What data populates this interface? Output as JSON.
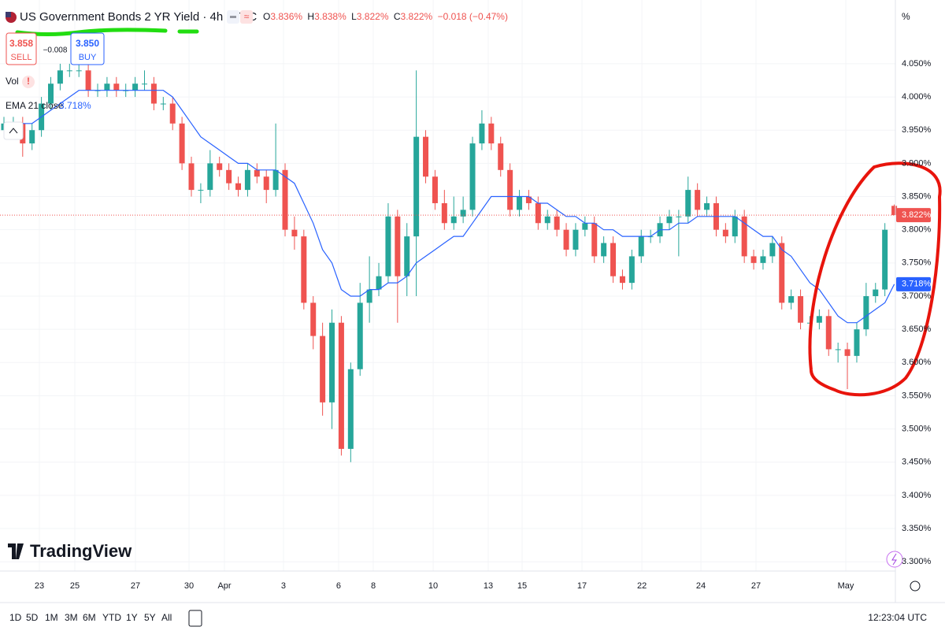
{
  "header": {
    "title": "US Government Bonds 2 YR Yield · 4h · TVC",
    "ohlc": [
      {
        "key": "O",
        "value": "3.836%"
      },
      {
        "key": "H",
        "value": "3.838%"
      },
      {
        "key": "L",
        "value": "3.822%"
      },
      {
        "key": "C",
        "value": "3.822%"
      }
    ],
    "change": "−0.018 (−0.47%)",
    "sell": {
      "price": "3.858",
      "label": "SELL"
    },
    "spread": "−0.008",
    "buy": {
      "price": "3.850",
      "label": "BUY"
    },
    "vol": "Vol",
    "unit": "%"
  },
  "logo": "TradingView",
  "toolbar": {
    "ranges": [
      "1D",
      "5D",
      "1M",
      "3M",
      "6M",
      "YTD",
      "1Y",
      "5Y",
      "All"
    ],
    "time": "12:23:04 UTC"
  },
  "chart_data": {
    "type": "candlestick",
    "x": [
      0,
      1,
      2,
      3,
      4,
      5,
      6,
      7,
      8,
      9,
      10,
      11,
      12,
      13,
      14,
      15,
      16,
      17,
      18,
      19,
      20,
      21,
      22,
      23,
      24,
      25,
      26,
      27,
      28,
      29,
      30,
      31,
      32,
      33,
      34,
      35,
      36,
      37,
      38,
      39,
      40,
      41,
      42,
      43,
      44,
      45,
      46,
      47,
      48,
      49,
      50,
      51,
      52,
      53,
      54,
      55,
      56,
      57,
      58,
      59,
      60,
      61,
      62,
      63,
      64,
      65,
      66,
      67,
      68,
      69,
      70,
      71,
      72,
      73,
      74,
      75,
      76,
      77,
      78,
      79,
      80,
      81,
      82,
      83,
      84,
      85,
      86,
      87,
      88,
      89,
      90,
      91,
      92,
      93,
      94,
      95
    ],
    "open": [
      3.95,
      3.96,
      3.96,
      3.93,
      3.95,
      3.99,
      4.02,
      4.04,
      4.04,
      4.04,
      4.01,
      4.01,
      4.02,
      4.01,
      4.01,
      4.02,
      4.02,
      3.99,
      3.99,
      3.96,
      3.9,
      3.86,
      3.86,
      3.9,
      3.89,
      3.87,
      3.86,
      3.89,
      3.88,
      3.86,
      3.89,
      3.8,
      3.79,
      3.69,
      3.64,
      3.54,
      3.66,
      3.47,
      3.59,
      3.69,
      3.71,
      3.73,
      3.82,
      3.73,
      3.79,
      3.94,
      3.88,
      3.84,
      3.81,
      3.82,
      3.83,
      3.93,
      3.96,
      3.93,
      3.89,
      3.83,
      3.85,
      3.84,
      3.81,
      3.82,
      3.8,
      3.77,
      3.8,
      3.81,
      3.76,
      3.78,
      3.73,
      3.72,
      3.76,
      3.79,
      3.79,
      3.81,
      3.82,
      3.82,
      3.86,
      3.83,
      3.84,
      3.8,
      3.79,
      3.82,
      3.76,
      3.75,
      3.76,
      3.78,
      3.69,
      3.7,
      3.66,
      3.66,
      3.67,
      3.62,
      3.62,
      3.61,
      3.65,
      3.7,
      3.71,
      3.836
    ],
    "high": [
      3.97,
      3.97,
      3.97,
      3.96,
      4.0,
      4.03,
      4.05,
      4.05,
      4.05,
      4.05,
      4.02,
      4.03,
      4.03,
      4.02,
      4.03,
      4.04,
      4.03,
      4.0,
      4.0,
      3.97,
      3.91,
      3.87,
      3.92,
      3.91,
      3.9,
      3.88,
      3.9,
      3.9,
      3.89,
      3.96,
      3.9,
      3.82,
      3.8,
      3.7,
      3.66,
      3.68,
      3.67,
      3.6,
      3.72,
      3.76,
      3.75,
      3.84,
      3.83,
      3.81,
      4.04,
      3.95,
      3.89,
      3.86,
      3.85,
      3.85,
      3.94,
      3.98,
      3.97,
      3.94,
      3.9,
      3.86,
      3.86,
      3.85,
      3.83,
      3.83,
      3.81,
      3.81,
      3.82,
      3.82,
      3.79,
      3.79,
      3.74,
      3.77,
      3.8,
      3.8,
      3.82,
      3.83,
      3.83,
      3.88,
      3.87,
      3.85,
      3.85,
      3.81,
      3.83,
      3.83,
      3.77,
      3.77,
      3.79,
      3.79,
      3.71,
      3.71,
      3.67,
      3.68,
      3.68,
      3.63,
      3.63,
      3.66,
      3.72,
      3.72,
      3.81,
      3.838
    ],
    "low": [
      3.94,
      3.95,
      3.91,
      3.92,
      3.94,
      3.98,
      4.01,
      4.03,
      4.03,
      4.0,
      4.0,
      4.0,
      4.0,
      4.0,
      4.0,
      4.01,
      3.98,
      3.98,
      3.95,
      3.89,
      3.85,
      3.84,
      3.85,
      3.88,
      3.86,
      3.85,
      3.85,
      3.87,
      3.84,
      3.85,
      3.79,
      3.77,
      3.68,
      3.62,
      3.52,
      3.5,
      3.46,
      3.45,
      3.58,
      3.66,
      3.7,
      3.72,
      3.66,
      3.7,
      3.7,
      3.87,
      3.83,
      3.8,
      3.8,
      3.81,
      3.82,
      3.92,
      3.92,
      3.88,
      3.82,
      3.82,
      3.83,
      3.8,
      3.8,
      3.79,
      3.76,
      3.76,
      3.79,
      3.75,
      3.75,
      3.72,
      3.71,
      3.71,
      3.75,
      3.78,
      3.78,
      3.8,
      3.76,
      3.81,
      3.82,
      3.82,
      3.79,
      3.78,
      3.78,
      3.75,
      3.74,
      3.74,
      3.75,
      3.68,
      3.68,
      3.65,
      3.65,
      3.65,
      3.61,
      3.6,
      3.56,
      3.6,
      3.64,
      3.69,
      3.7,
      3.822
    ],
    "close": [
      3.96,
      3.96,
      3.93,
      3.95,
      3.99,
      4.02,
      4.04,
      4.04,
      4.04,
      4.01,
      4.01,
      4.02,
      4.01,
      4.01,
      4.02,
      4.02,
      3.99,
      3.99,
      3.96,
      3.9,
      3.86,
      3.86,
      3.9,
      3.89,
      3.87,
      3.86,
      3.89,
      3.88,
      3.86,
      3.89,
      3.8,
      3.79,
      3.69,
      3.64,
      3.54,
      3.66,
      3.47,
      3.59,
      3.69,
      3.71,
      3.73,
      3.82,
      3.73,
      3.79,
      3.94,
      3.88,
      3.84,
      3.81,
      3.82,
      3.83,
      3.93,
      3.96,
      3.93,
      3.89,
      3.83,
      3.85,
      3.84,
      3.81,
      3.82,
      3.8,
      3.77,
      3.8,
      3.81,
      3.76,
      3.78,
      3.73,
      3.72,
      3.76,
      3.79,
      3.79,
      3.81,
      3.82,
      3.82,
      3.86,
      3.83,
      3.84,
      3.8,
      3.79,
      3.82,
      3.76,
      3.75,
      3.76,
      3.78,
      3.69,
      3.7,
      3.66,
      3.66,
      3.67,
      3.62,
      3.62,
      3.61,
      3.65,
      3.7,
      3.71,
      3.8,
      3.822
    ],
    "last_label": "3.822%",
    "up_color": "#26a69a",
    "down_color": "#ef5350",
    "series": [
      {
        "name": "EMA 21 close",
        "color": "#2962ff",
        "value_label": "3.718%",
        "values": [
          3.96,
          3.96,
          3.96,
          3.96,
          3.97,
          3.98,
          3.99,
          4.0,
          4.01,
          4.01,
          4.01,
          4.01,
          4.01,
          4.01,
          4.01,
          4.01,
          4.01,
          4.01,
          4.0,
          3.98,
          3.96,
          3.94,
          3.93,
          3.92,
          3.91,
          3.9,
          3.9,
          3.89,
          3.89,
          3.89,
          3.88,
          3.87,
          3.84,
          3.81,
          3.77,
          3.75,
          3.71,
          3.7,
          3.7,
          3.71,
          3.71,
          3.72,
          3.72,
          3.73,
          3.75,
          3.76,
          3.77,
          3.78,
          3.79,
          3.79,
          3.81,
          3.83,
          3.85,
          3.85,
          3.85,
          3.85,
          3.85,
          3.84,
          3.84,
          3.83,
          3.82,
          3.82,
          3.81,
          3.81,
          3.8,
          3.8,
          3.79,
          3.79,
          3.79,
          3.79,
          3.8,
          3.8,
          3.81,
          3.81,
          3.82,
          3.82,
          3.82,
          3.82,
          3.82,
          3.81,
          3.8,
          3.79,
          3.79,
          3.77,
          3.76,
          3.74,
          3.72,
          3.71,
          3.69,
          3.67,
          3.66,
          3.66,
          3.67,
          3.68,
          3.69,
          3.718
        ]
      }
    ],
    "xlim": [
      -0.42,
      95.12
    ],
    "xticks": [
      {
        "value": 3.78,
        "label": "23"
      },
      {
        "value": 7.56,
        "label": "25"
      },
      {
        "value": 14.03,
        "label": "27"
      },
      {
        "value": 19.75,
        "label": "30"
      },
      {
        "value": 23.53,
        "label": "Apr"
      },
      {
        "value": 29.83,
        "label": "3"
      },
      {
        "value": 35.71,
        "label": "6"
      },
      {
        "value": 39.41,
        "label": "8"
      },
      {
        "value": 45.8,
        "label": "10"
      },
      {
        "value": 51.68,
        "label": "13"
      },
      {
        "value": 55.29,
        "label": "15"
      },
      {
        "value": 61.68,
        "label": "17"
      },
      {
        "value": 68.07,
        "label": "22"
      },
      {
        "value": 74.37,
        "label": "24"
      },
      {
        "value": 80.25,
        "label": "27"
      },
      {
        "value": 89.83,
        "label": "May"
      }
    ],
    "ylim": [
      3.286,
      4.146
    ],
    "yticks": [
      {
        "value": 3.3,
        "label": "3.300%"
      },
      {
        "value": 3.35,
        "label": "3.350%"
      },
      {
        "value": 3.4,
        "label": "3.400%"
      },
      {
        "value": 3.45,
        "label": "3.450%"
      },
      {
        "value": 3.5,
        "label": "3.500%"
      },
      {
        "value": 3.55,
        "label": "3.550%"
      },
      {
        "value": 3.6,
        "label": "3.600%"
      },
      {
        "value": 3.65,
        "label": "3.650%"
      },
      {
        "value": 3.7,
        "label": "3.700%"
      },
      {
        "value": 3.75,
        "label": "3.750%"
      },
      {
        "value": 3.8,
        "label": "3.800%"
      },
      {
        "value": 3.85,
        "label": "3.850%"
      },
      {
        "value": 3.9,
        "label": "3.900%"
      },
      {
        "value": 3.95,
        "label": "3.950%"
      },
      {
        "value": 4.0,
        "label": "4.000%"
      },
      {
        "value": 4.05,
        "label": "4.050%"
      }
    ],
    "grid": true
  }
}
